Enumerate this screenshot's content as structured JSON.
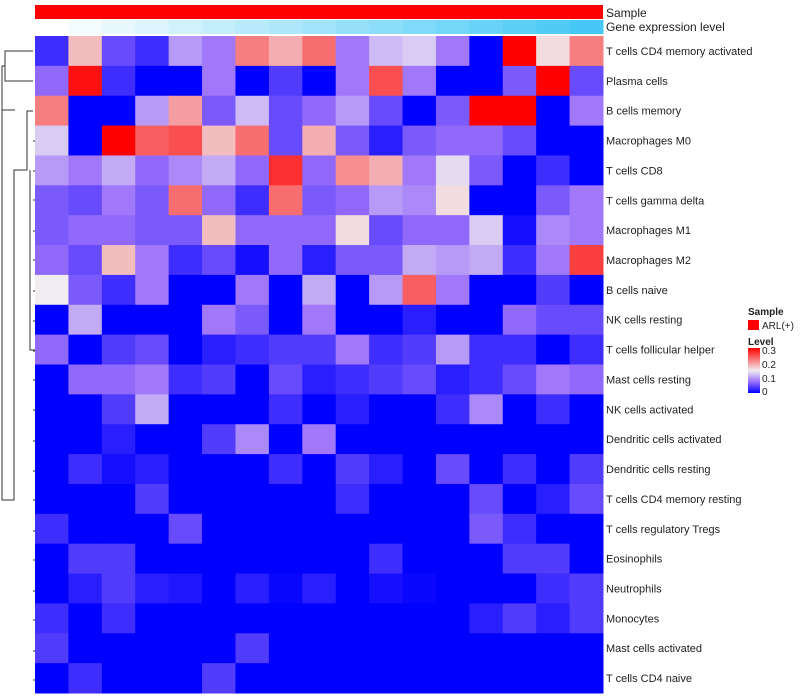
{
  "chart_data": {
    "type": "heatmap",
    "title": "",
    "annotation_rows": [
      "Sample",
      "Gene expression level"
    ],
    "sample_group": "ARL(+)",
    "colors": {
      "sample": "#ff0000",
      "expr_low": "#ffffff",
      "expr_high": "#45c8f5",
      "low": "#0000ff",
      "mid": "#f0ecf0",
      "high": "#ff0000"
    },
    "legend": {
      "sample_title": "Sample",
      "sample_entries": [
        "ARL(+)"
      ],
      "level_title": "Level",
      "level_ticks": [
        "0.3",
        "0.2",
        "0.1",
        "0"
      ],
      "range": [
        0,
        0.3
      ],
      "placement": "right"
    },
    "n_columns": 17,
    "rows": [
      "T cells CD4 memory activated",
      "Plasma cells",
      "B cells memory",
      "Macrophages M0",
      "T cells CD8",
      "T cells gamma delta",
      "Macrophages M1",
      "Macrophages M2",
      "B cells naive",
      "NK cells resting",
      "T cells follicular helper",
      "Mast cells resting",
      "NK cells activated",
      "Dendritic cells activated",
      "Dendritic cells resting",
      "T cells CD4 memory resting",
      "T cells regulatory  Tregs",
      "Eosinophils",
      "Neutrophils",
      "Monocytes",
      "Mast cells activated",
      "T cells CD4 naive"
    ],
    "values": [
      [
        0.03,
        0.18,
        0.05,
        0.03,
        0.1,
        0.08,
        0.22,
        0.19,
        0.23,
        0.08,
        0.12,
        0.13,
        0.08,
        0,
        0.3,
        0.16,
        0.22
      ],
      [
        0.07,
        0.29,
        0.03,
        0,
        0,
        0.08,
        0,
        0.04,
        0,
        0.08,
        0.25,
        0.08,
        0,
        0,
        0.06,
        0.3,
        0.05
      ],
      [
        0.22,
        0,
        0,
        0.1,
        0.2,
        0.06,
        0.12,
        0.05,
        0.07,
        0.1,
        0.05,
        0,
        0.06,
        0.3,
        0.3,
        0,
        0.08
      ],
      [
        0.13,
        0,
        0.3,
        0.24,
        0.25,
        0.18,
        0.23,
        0.05,
        0.19,
        0.06,
        0.02,
        0.06,
        0.07,
        0.07,
        0.05,
        0,
        0
      ],
      [
        0.1,
        0.08,
        0.11,
        0.07,
        0.09,
        0.11,
        0.07,
        0.27,
        0.07,
        0.21,
        0.19,
        0.08,
        0.14,
        0.06,
        0,
        0.03,
        0
      ],
      [
        0.06,
        0.05,
        0.08,
        0.06,
        0.23,
        0.07,
        0.03,
        0.23,
        0.06,
        0.07,
        0.1,
        0.09,
        0.16,
        0,
        0,
        0.06,
        0.08
      ],
      [
        0.06,
        0.07,
        0.07,
        0.06,
        0.06,
        0.18,
        0.07,
        0.07,
        0.07,
        0.16,
        0.05,
        0.07,
        0.07,
        0.13,
        0.01,
        0.09,
        0.08
      ],
      [
        0.07,
        0.05,
        0.18,
        0.08,
        0.03,
        0.05,
        0.01,
        0.07,
        0.02,
        0.06,
        0.06,
        0.11,
        0.1,
        0.11,
        0.03,
        0.08,
        0.26
      ],
      [
        0.15,
        0.06,
        0.03,
        0.08,
        0,
        0,
        0.08,
        0,
        0.11,
        0,
        0.1,
        0.24,
        0.08,
        0,
        0,
        0.04,
        0
      ],
      [
        0,
        0.11,
        0,
        0,
        0,
        0.08,
        0.06,
        0,
        0.08,
        0,
        0,
        0.02,
        0,
        0,
        0.07,
        0.05,
        0.05
      ],
      [
        0.07,
        0,
        0.04,
        0.05,
        0,
        0.02,
        0.03,
        0.04,
        0.04,
        0.08,
        0.03,
        0.04,
        0.1,
        0.03,
        0.03,
        0,
        0.03
      ],
      [
        0,
        0.07,
        0.07,
        0.08,
        0.03,
        0.04,
        0,
        0.05,
        0.02,
        0.03,
        0.04,
        0.05,
        0.02,
        0.03,
        0.05,
        0.08,
        0.07
      ],
      [
        0,
        0,
        0.04,
        0.11,
        0,
        0,
        0,
        0.03,
        0,
        0.02,
        0,
        0,
        0.03,
        0.09,
        0,
        0.03,
        0
      ],
      [
        0,
        0,
        0.02,
        0,
        0,
        0.04,
        0.09,
        0,
        0.08,
        0,
        0,
        0,
        0,
        0,
        0,
        0,
        0
      ],
      [
        0,
        0.03,
        0.01,
        0.02,
        0,
        0,
        0,
        0.03,
        0,
        0.04,
        0.02,
        0,
        0.05,
        0,
        0.03,
        0,
        0.04
      ],
      [
        0,
        0,
        0,
        0.04,
        0,
        0,
        0,
        0,
        0,
        0.03,
        0,
        0,
        0,
        0.05,
        0,
        0.02,
        0.05
      ],
      [
        0.03,
        0,
        0,
        0,
        0.05,
        0,
        0,
        0,
        0,
        0,
        0,
        0,
        0,
        0.06,
        0.03,
        0,
        0
      ],
      [
        0,
        0.04,
        0.04,
        0,
        0,
        0,
        0,
        0,
        0,
        0,
        0.03,
        0,
        0,
        0,
        0.04,
        0.04,
        0
      ],
      [
        0,
        0.02,
        0.04,
        0.02,
        0.015,
        0,
        0.02,
        0.005,
        0.02,
        0,
        0.01,
        0.005,
        0,
        0,
        0,
        0.03,
        0.04
      ],
      [
        0.03,
        0,
        0.03,
        0,
        0,
        0,
        0,
        0,
        0,
        0,
        0,
        0,
        0,
        0.02,
        0.04,
        0.02,
        0.04
      ],
      [
        0.04,
        0,
        0,
        0,
        0,
        0,
        0.04,
        0,
        0,
        0,
        0,
        0,
        0,
        0,
        0,
        0,
        0
      ],
      [
        0,
        0.03,
        0,
        0,
        0,
        0.04,
        0,
        0,
        0,
        0,
        0,
        0,
        0,
        0,
        0,
        0,
        0
      ]
    ]
  }
}
